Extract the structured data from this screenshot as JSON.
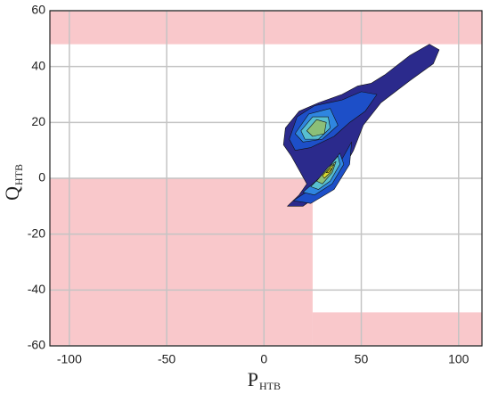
{
  "chart_data": {
    "type": "contour",
    "x_label": "P",
    "x_label_sub": "HTB",
    "y_label": "Q",
    "y_label_sub": "HTB",
    "xlim": [
      -110,
      112
    ],
    "ylim": [
      -60,
      60
    ],
    "xticks": [
      -100,
      -50,
      0,
      50,
      100
    ],
    "yticks": [
      -60,
      -40,
      -20,
      0,
      20,
      40,
      60
    ],
    "grid": true,
    "grid_color": "#c4c4c4",
    "region_color": "#f9c8cb",
    "regions": [
      {
        "x": [
          -110,
          112
        ],
        "y": [
          48,
          60
        ]
      },
      {
        "x": [
          -110,
          25
        ],
        "y": [
          -60,
          0
        ]
      },
      {
        "x": [
          25,
          112
        ],
        "y": [
          -60,
          -48
        ]
      }
    ],
    "contours": [
      {
        "color": "#2b2a8c",
        "points": [
          [
            12,
            -10
          ],
          [
            18,
            -6
          ],
          [
            22,
            -2
          ],
          [
            14,
            8
          ],
          [
            10,
            12
          ],
          [
            11,
            18
          ],
          [
            18,
            24
          ],
          [
            28,
            27
          ],
          [
            40,
            30
          ],
          [
            48,
            33
          ],
          [
            55,
            34
          ],
          [
            62,
            37
          ],
          [
            75,
            44
          ],
          [
            85,
            48
          ],
          [
            90,
            46
          ],
          [
            87,
            41
          ],
          [
            75,
            35
          ],
          [
            60,
            27
          ],
          [
            51,
            19
          ],
          [
            46,
            10
          ],
          [
            38,
            0
          ],
          [
            30,
            -5
          ],
          [
            20,
            -10
          ]
        ]
      },
      {
        "color": "#1d4fc8",
        "points": [
          [
            13,
            14
          ],
          [
            17,
            22
          ],
          [
            26,
            26
          ],
          [
            40,
            28
          ],
          [
            50,
            31
          ],
          [
            58,
            30
          ],
          [
            52,
            24
          ],
          [
            44,
            20
          ],
          [
            36,
            15
          ],
          [
            24,
            11
          ],
          [
            16,
            10
          ]
        ]
      },
      {
        "color": "#1d4fc8",
        "points": [
          [
            15,
            -8
          ],
          [
            26,
            -3
          ],
          [
            37,
            3
          ],
          [
            45,
            13
          ],
          [
            44,
            5
          ],
          [
            36,
            -4
          ],
          [
            24,
            -9
          ]
        ]
      },
      {
        "color": "#2f86e0",
        "points": [
          [
            16,
            16
          ],
          [
            23,
            23
          ],
          [
            34,
            25
          ],
          [
            38,
            19
          ],
          [
            30,
            14
          ],
          [
            20,
            13
          ]
        ]
      },
      {
        "color": "#2f86e0",
        "points": [
          [
            20,
            -5
          ],
          [
            30,
            1
          ],
          [
            39,
            9
          ],
          [
            41,
            5
          ],
          [
            35,
            -2
          ],
          [
            26,
            -6
          ]
        ]
      },
      {
        "color": "#58bfd0",
        "points": [
          [
            19,
            17
          ],
          [
            25,
            22
          ],
          [
            33,
            22
          ],
          [
            34,
            18
          ],
          [
            28,
            14
          ],
          [
            21,
            14
          ]
        ]
      },
      {
        "color": "#58bfd0",
        "points": [
          [
            24,
            -3
          ],
          [
            31,
            2
          ],
          [
            38,
            8
          ],
          [
            39,
            5
          ],
          [
            34,
            -1
          ],
          [
            28,
            -4
          ]
        ]
      },
      {
        "color": "#8cbf78",
        "points": [
          [
            22,
            17
          ],
          [
            27,
            21
          ],
          [
            32,
            20
          ],
          [
            31,
            16
          ],
          [
            25,
            15
          ]
        ]
      },
      {
        "color": "#8cbf78",
        "points": [
          [
            27,
            -1
          ],
          [
            33,
            4
          ],
          [
            37,
            6
          ],
          [
            35,
            2
          ],
          [
            30,
            -2
          ]
        ]
      },
      {
        "color": "#d8d830",
        "points": [
          [
            30,
            1
          ],
          [
            34,
            4
          ],
          [
            36,
            5
          ],
          [
            34,
            2
          ],
          [
            31,
            0
          ]
        ]
      },
      {
        "color": "#f5e818",
        "points": [
          [
            32,
            2
          ],
          [
            34,
            3.5
          ],
          [
            35,
            3.5
          ],
          [
            33,
            2
          ]
        ]
      }
    ]
  }
}
